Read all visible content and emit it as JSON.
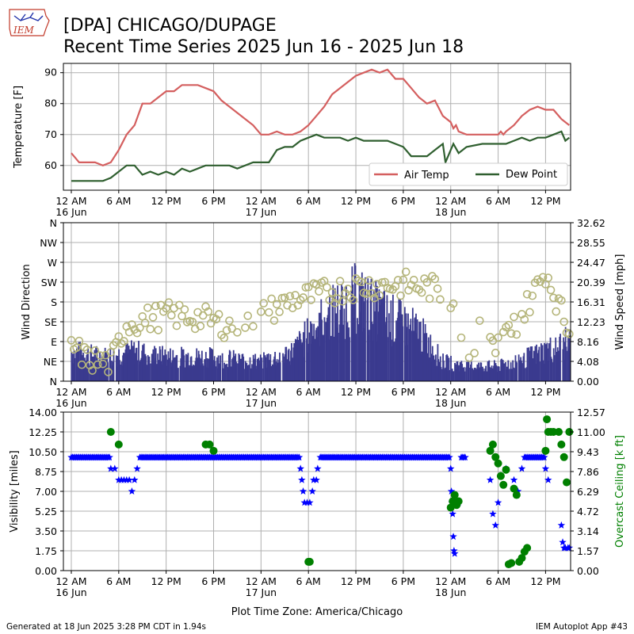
{
  "header": {
    "logo_text": "IEM",
    "title_line1": "[DPA] CHICAGO/DUPAGE",
    "title_line2": "Recent Time Series 2025 Jun 16 - 2025 Jun 18"
  },
  "footer": {
    "generated": "Generated at 18 Jun 2025 3:28 PM CDT in 1.94s",
    "app": "IEM Autoplot App #43"
  },
  "colors": {
    "air_temp": "#d45f5f",
    "dew_point": "#2f5f2f",
    "wind_speed_bar": "#3a3a8f",
    "wind_dir_marker": "#b5b57a",
    "visibility": "#0000ff",
    "ceiling": "#008000",
    "grid": "#b0b0b0"
  },
  "x_axis": {
    "tick_labels": [
      "12 AM",
      "6 AM",
      "12 PM",
      "6 PM",
      "12 AM",
      "6 AM",
      "12 PM",
      "6 PM",
      "12 AM",
      "6 AM",
      "12 PM"
    ],
    "date_labels": [
      "16 Jun",
      "17 Jun",
      "18 Jun"
    ],
    "xlabel": "Plot Time Zone: America/Chicago"
  },
  "chart_data": [
    {
      "type": "line",
      "ylabel": "Temperature [F]",
      "ylim": [
        52,
        93
      ],
      "xlim": [
        "2025-06-15 23:00",
        "2025-06-18 15:10"
      ],
      "yticks": [
        60,
        70,
        80,
        90
      ],
      "legend": "lower-right",
      "grid": true,
      "series": [
        {
          "name": "Air Temp",
          "points": [
            [
              "2025-06-16 00:00",
              64
            ],
            [
              "2025-06-16 01:00",
              61
            ],
            [
              "2025-06-16 03:00",
              61
            ],
            [
              "2025-06-16 04:00",
              60
            ],
            [
              "2025-06-16 05:00",
              61
            ],
            [
              "2025-06-16 06:00",
              65
            ],
            [
              "2025-06-16 07:00",
              70
            ],
            [
              "2025-06-16 08:00",
              73
            ],
            [
              "2025-06-16 09:00",
              80
            ],
            [
              "2025-06-16 10:00",
              80
            ],
            [
              "2025-06-16 12:00",
              84
            ],
            [
              "2025-06-16 13:00",
              84
            ],
            [
              "2025-06-16 14:00",
              86
            ],
            [
              "2025-06-16 16:00",
              86
            ],
            [
              "2025-06-16 17:00",
              85
            ],
            [
              "2025-06-16 18:00",
              84
            ],
            [
              "2025-06-16 19:00",
              81
            ],
            [
              "2025-06-16 21:00",
              77
            ],
            [
              "2025-06-16 23:00",
              73
            ],
            [
              "2025-06-17 00:00",
              70
            ],
            [
              "2025-06-17 01:00",
              70
            ],
            [
              "2025-06-17 02:00",
              71
            ],
            [
              "2025-06-17 03:00",
              70
            ],
            [
              "2025-06-17 04:00",
              70
            ],
            [
              "2025-06-17 05:00",
              71
            ],
            [
              "2025-06-17 06:00",
              73
            ],
            [
              "2025-06-17 07:00",
              76
            ],
            [
              "2025-06-17 08:00",
              79
            ],
            [
              "2025-06-17 09:00",
              83
            ],
            [
              "2025-06-17 11:00",
              87
            ],
            [
              "2025-06-17 12:00",
              89
            ],
            [
              "2025-06-17 13:00",
              90
            ],
            [
              "2025-06-17 14:00",
              91
            ],
            [
              "2025-06-17 15:00",
              90
            ],
            [
              "2025-06-17 16:00",
              91
            ],
            [
              "2025-06-17 17:00",
              88
            ],
            [
              "2025-06-17 18:00",
              88
            ],
            [
              "2025-06-17 19:00",
              85
            ],
            [
              "2025-06-17 20:00",
              82
            ],
            [
              "2025-06-17 21:00",
              80
            ],
            [
              "2025-06-17 22:00",
              81
            ],
            [
              "2025-06-17 23:00",
              76
            ],
            [
              "2025-06-18 00:00",
              74
            ],
            [
              "2025-06-18 00:20",
              72
            ],
            [
              "2025-06-18 00:40",
              73
            ],
            [
              "2025-06-18 01:00",
              71
            ],
            [
              "2025-06-18 02:00",
              70
            ],
            [
              "2025-06-18 06:00",
              70
            ],
            [
              "2025-06-18 06:20",
              71
            ],
            [
              "2025-06-18 06:40",
              70
            ],
            [
              "2025-06-18 07:00",
              71
            ],
            [
              "2025-06-18 08:00",
              73
            ],
            [
              "2025-06-18 09:00",
              76
            ],
            [
              "2025-06-18 10:00",
              78
            ],
            [
              "2025-06-18 11:00",
              79
            ],
            [
              "2025-06-18 12:00",
              78
            ],
            [
              "2025-06-18 13:00",
              78
            ],
            [
              "2025-06-18 14:00",
              75
            ],
            [
              "2025-06-18 15:00",
              73
            ]
          ]
        },
        {
          "name": "Dew Point",
          "points": [
            [
              "2025-06-16 00:00",
              55
            ],
            [
              "2025-06-16 04:00",
              55
            ],
            [
              "2025-06-16 05:00",
              56
            ],
            [
              "2025-06-16 07:00",
              60
            ],
            [
              "2025-06-16 08:00",
              60
            ],
            [
              "2025-06-16 09:00",
              57
            ],
            [
              "2025-06-16 10:00",
              58
            ],
            [
              "2025-06-16 11:00",
              57
            ],
            [
              "2025-06-16 12:00",
              58
            ],
            [
              "2025-06-16 13:00",
              57
            ],
            [
              "2025-06-16 14:00",
              59
            ],
            [
              "2025-06-16 15:00",
              58
            ],
            [
              "2025-06-16 16:00",
              59
            ],
            [
              "2025-06-16 17:00",
              60
            ],
            [
              "2025-06-16 20:00",
              60
            ],
            [
              "2025-06-16 21:00",
              59
            ],
            [
              "2025-06-16 23:00",
              61
            ],
            [
              "2025-06-17 01:00",
              61
            ],
            [
              "2025-06-17 02:00",
              65
            ],
            [
              "2025-06-17 03:00",
              66
            ],
            [
              "2025-06-17 04:00",
              66
            ],
            [
              "2025-06-17 05:00",
              68
            ],
            [
              "2025-06-17 06:00",
              69
            ],
            [
              "2025-06-17 07:00",
              70
            ],
            [
              "2025-06-17 08:00",
              69
            ],
            [
              "2025-06-17 10:00",
              69
            ],
            [
              "2025-06-17 11:00",
              68
            ],
            [
              "2025-06-17 12:00",
              69
            ],
            [
              "2025-06-17 13:00",
              68
            ],
            [
              "2025-06-17 16:00",
              68
            ],
            [
              "2025-06-17 18:00",
              66
            ],
            [
              "2025-06-17 19:00",
              63
            ],
            [
              "2025-06-17 21:00",
              63
            ],
            [
              "2025-06-17 22:00",
              65
            ],
            [
              "2025-06-17 23:00",
              67
            ],
            [
              "2025-06-17 23:20",
              61
            ],
            [
              "2025-06-18 00:00",
              65
            ],
            [
              "2025-06-18 00:20",
              67
            ],
            [
              "2025-06-18 01:00",
              64
            ],
            [
              "2025-06-18 02:00",
              66
            ],
            [
              "2025-06-18 04:00",
              67
            ],
            [
              "2025-06-18 07:00",
              67
            ],
            [
              "2025-06-18 08:00",
              68
            ],
            [
              "2025-06-18 09:00",
              69
            ],
            [
              "2025-06-18 10:00",
              68
            ],
            [
              "2025-06-18 11:00",
              69
            ],
            [
              "2025-06-18 12:00",
              69
            ],
            [
              "2025-06-18 13:00",
              70
            ],
            [
              "2025-06-18 14:00",
              71
            ],
            [
              "2025-06-18 14:30",
              68
            ],
            [
              "2025-06-18 15:00",
              69
            ]
          ]
        }
      ]
    },
    {
      "type": "bar",
      "ylabel": "Wind Direction",
      "ylabel2": "Wind Speed [mph]",
      "xlim": [
        "2025-06-15 23:00",
        "2025-06-18 15:10"
      ],
      "direction_ticks": [
        "N",
        "NE",
        "E",
        "SE",
        "S",
        "SW",
        "W",
        "NW",
        "N"
      ],
      "speed_ticks": [
        "0.00",
        "4.08",
        "8.16",
        "12.23",
        "16.31",
        "20.39",
        "24.47",
        "28.55",
        "32.62"
      ],
      "speed_ylim": [
        0,
        32.62
      ],
      "direction_ylim": [
        0,
        360
      ],
      "grid": true,
      "speed_profile_mph": [
        [
          "2025-06-16 00:00",
          6
        ],
        [
          "2025-06-16 04:00",
          5
        ],
        [
          "2025-06-16 08:00",
          6
        ],
        [
          "2025-06-16 12:00",
          5
        ],
        [
          "2025-06-16 17:00",
          5
        ],
        [
          "2025-06-17 00:00",
          4
        ],
        [
          "2025-06-17 04:00",
          6
        ],
        [
          "2025-06-17 08:00",
          13
        ],
        [
          "2025-06-17 12:00",
          17
        ],
        [
          "2025-06-17 16:00",
          13
        ],
        [
          "2025-06-17 20:00",
          10
        ],
        [
          "2025-06-17 23:00",
          4
        ],
        [
          "2025-06-18 02:00",
          3
        ],
        [
          "2025-06-18 06:00",
          3
        ],
        [
          "2025-06-18 10:00",
          5
        ],
        [
          "2025-06-18 15:00",
          8
        ]
      ],
      "direction_profile_deg": [
        [
          "2025-06-16 00:00",
          80
        ],
        [
          "2025-06-16 02:00",
          50
        ],
        [
          "2025-06-16 05:00",
          40
        ],
        [
          "2025-06-16 07:00",
          130
        ],
        [
          "2025-06-16 12:00",
          150
        ],
        [
          "2025-06-16 16:00",
          145
        ],
        [
          "2025-06-16 20:00",
          125
        ],
        [
          "2025-06-17 00:00",
          150
        ],
        [
          "2025-06-17 04:00",
          185
        ],
        [
          "2025-06-17 08:00",
          200
        ],
        [
          "2025-06-17 12:00",
          215
        ],
        [
          "2025-06-17 18:00",
          220
        ],
        [
          "2025-06-17 22:00",
          210
        ],
        [
          "2025-06-18 00:00",
          185
        ],
        [
          "2025-06-18 02:00",
          60
        ],
        [
          "2025-06-18 04:00",
          120
        ],
        [
          "2025-06-18 06:00",
          80
        ],
        [
          "2025-06-18 09:00",
          150
        ],
        [
          "2025-06-18 12:00",
          250
        ],
        [
          "2025-06-18 15:00",
          110
        ]
      ]
    },
    {
      "type": "scatter",
      "ylabel": "Visibility [miles]",
      "ylabel2": "Overcast Ceiling [k ft]",
      "xlim": [
        "2025-06-15 23:00",
        "2025-06-18 15:10"
      ],
      "vis_ticks": [
        "0.00",
        "1.75",
        "3.50",
        "5.25",
        "7.00",
        "8.75",
        "10.50",
        "12.25",
        "14.00"
      ],
      "ceil_ticks": [
        "0.00",
        "1.57",
        "3.14",
        "4.72",
        "6.29",
        "7.86",
        "9.43",
        "11.00",
        "12.57"
      ],
      "vis_ylim": [
        0,
        14
      ],
      "ceil_ylim": [
        0,
        12.57
      ],
      "grid": true,
      "visibility_miles": [
        [
          "2025-06-16 05:00",
          9
        ],
        [
          "2025-06-16 05:30",
          9
        ],
        [
          "2025-06-16 06:00",
          8
        ],
        [
          "2025-06-16 06:20",
          8
        ],
        [
          "2025-06-16 06:40",
          8
        ],
        [
          "2025-06-16 07:00",
          8
        ],
        [
          "2025-06-16 07:20",
          8
        ],
        [
          "2025-06-16 07:40",
          7
        ],
        [
          "2025-06-16 08:00",
          8
        ],
        [
          "2025-06-16 08:20",
          9
        ],
        [
          "2025-06-17 05:00",
          9
        ],
        [
          "2025-06-17 05:10",
          8
        ],
        [
          "2025-06-17 05:20",
          7
        ],
        [
          "2025-06-17 05:30",
          6
        ],
        [
          "2025-06-17 05:50",
          6
        ],
        [
          "2025-06-17 06:10",
          6
        ],
        [
          "2025-06-17 06:30",
          7
        ],
        [
          "2025-06-17 06:40",
          8
        ],
        [
          "2025-06-17 07:00",
          8
        ],
        [
          "2025-06-17 07:10",
          9
        ],
        [
          "2025-06-18 00:00",
          9
        ],
        [
          "2025-06-18 00:05",
          7
        ],
        [
          "2025-06-18 00:10",
          6
        ],
        [
          "2025-06-18 00:15",
          5
        ],
        [
          "2025-06-18 00:20",
          3
        ],
        [
          "2025-06-18 00:25",
          1.75
        ],
        [
          "2025-06-18 00:30",
          1.5
        ],
        [
          "2025-06-18 01:00",
          6
        ],
        [
          "2025-06-18 05:00",
          8
        ],
        [
          "2025-06-18 05:20",
          5
        ],
        [
          "2025-06-18 05:40",
          4
        ],
        [
          "2025-06-18 06:00",
          6
        ],
        [
          "2025-06-18 07:00",
          9
        ],
        [
          "2025-06-18 08:00",
          8
        ],
        [
          "2025-06-18 08:30",
          7
        ],
        [
          "2025-06-18 09:00",
          9
        ],
        [
          "2025-06-18 12:00",
          9
        ],
        [
          "2025-06-18 12:20",
          8
        ],
        [
          "2025-06-18 14:00",
          4
        ],
        [
          "2025-06-18 14:10",
          2.5
        ],
        [
          "2025-06-18 14:20",
          2
        ],
        [
          "2025-06-18 14:30",
          2
        ],
        [
          "2025-06-18 14:50",
          2
        ],
        [
          "2025-06-18 15:00",
          2
        ]
      ],
      "visibility_baseline_miles": 10,
      "ceiling_kft": [
        [
          "2025-06-16 05:00",
          11.0
        ],
        [
          "2025-06-16 06:00",
          10.0
        ],
        [
          "2025-06-16 17:00",
          10.0
        ],
        [
          "2025-06-16 17:30",
          10.0
        ],
        [
          "2025-06-16 18:00",
          9.5
        ],
        [
          "2025-06-17 06:00",
          0.7
        ],
        [
          "2025-06-17 06:10",
          0.7
        ],
        [
          "2025-06-18 00:00",
          5.0
        ],
        [
          "2025-06-18 00:15",
          5.5
        ],
        [
          "2025-06-18 00:30",
          6.0
        ],
        [
          "2025-06-18 00:45",
          5.2
        ],
        [
          "2025-06-18 01:00",
          5.5
        ],
        [
          "2025-06-18 05:00",
          9.5
        ],
        [
          "2025-06-18 05:20",
          10.0
        ],
        [
          "2025-06-18 05:40",
          9.0
        ],
        [
          "2025-06-18 06:00",
          8.5
        ],
        [
          "2025-06-18 06:20",
          7.5
        ],
        [
          "2025-06-18 06:40",
          6.8
        ],
        [
          "2025-06-18 07:00",
          8.0
        ],
        [
          "2025-06-18 07:20",
          0.5
        ],
        [
          "2025-06-18 07:40",
          0.6
        ],
        [
          "2025-06-18 08:00",
          6.5
        ],
        [
          "2025-06-18 08:20",
          6.0
        ],
        [
          "2025-06-18 08:40",
          0.7
        ],
        [
          "2025-06-18 09:00",
          1.0
        ],
        [
          "2025-06-18 09:20",
          1.5
        ],
        [
          "2025-06-18 09:40",
          1.8
        ],
        [
          "2025-06-18 12:00",
          9.5
        ],
        [
          "2025-06-18 12:10",
          12.0
        ],
        [
          "2025-06-18 12:20",
          11.0
        ],
        [
          "2025-06-18 12:40",
          11.0
        ],
        [
          "2025-06-18 13:00",
          11.0
        ],
        [
          "2025-06-18 13:40",
          11.0
        ],
        [
          "2025-06-18 14:00",
          10.0
        ],
        [
          "2025-06-18 14:20",
          9.0
        ],
        [
          "2025-06-18 14:40",
          7.0
        ],
        [
          "2025-06-18 15:00",
          11.0
        ]
      ]
    }
  ]
}
